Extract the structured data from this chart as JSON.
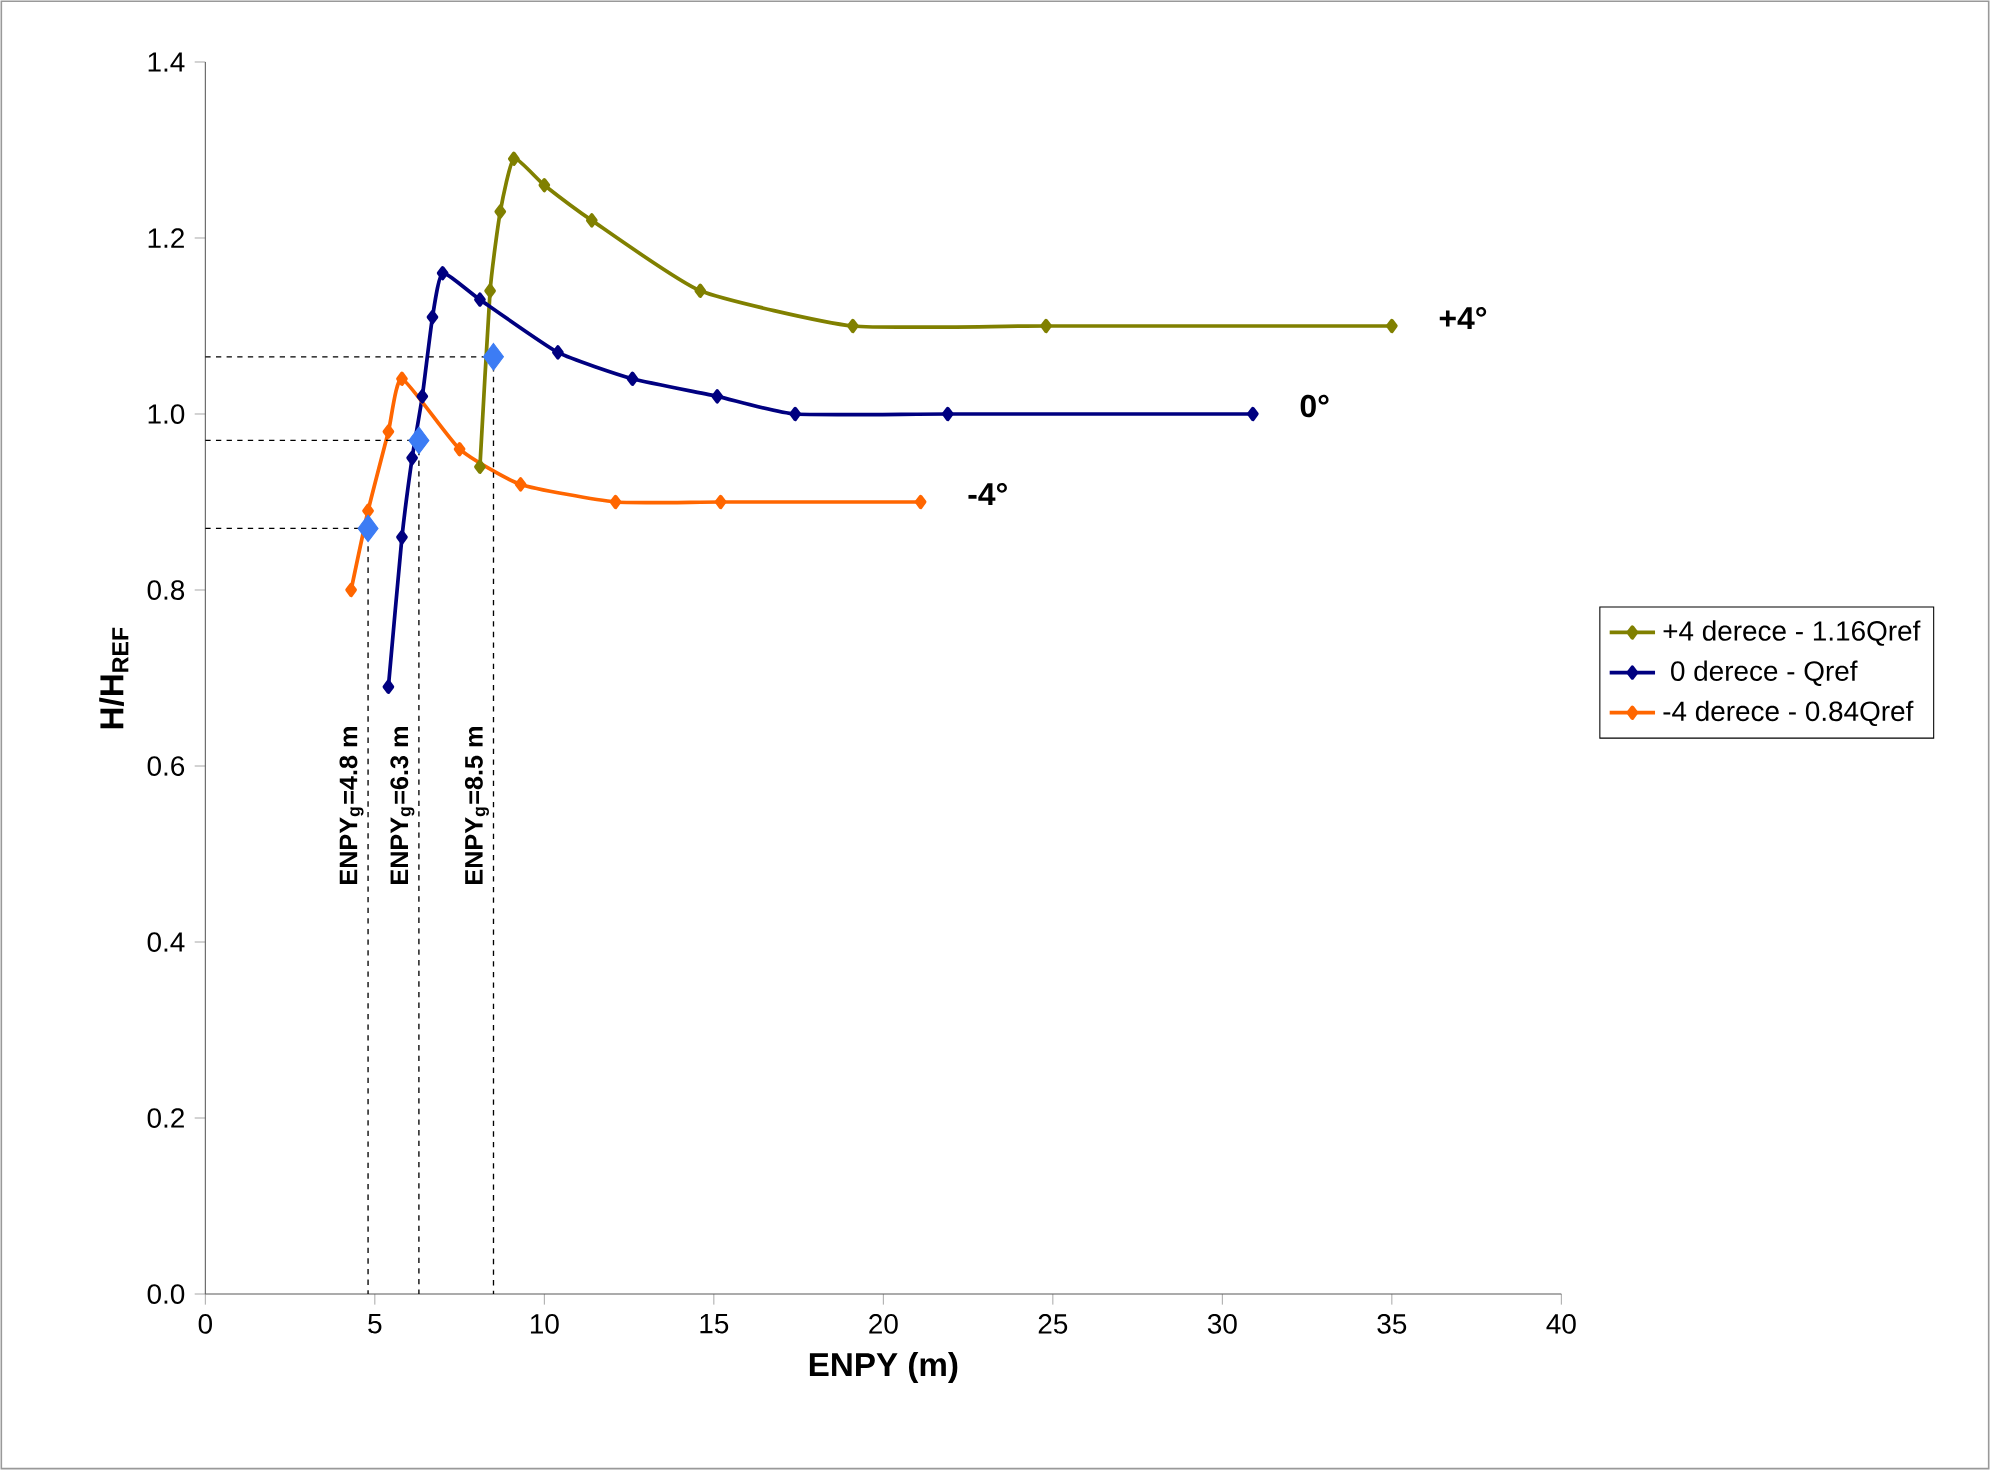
{
  "chart_data": {
    "type": "line",
    "xlabel": "ENPY (m)",
    "ylabel": "H/H$_{REF}$",
    "xlim": [
      0,
      40
    ],
    "ylim": [
      0,
      1.4
    ],
    "xticks": [
      0,
      5,
      10,
      15,
      20,
      25,
      30,
      35,
      40
    ],
    "yticks": [
      {
        "value": 0,
        "label": "0.0"
      },
      {
        "value": 0.2,
        "label": "0.2"
      },
      {
        "value": 0.4,
        "label": "0.4"
      },
      {
        "value": 0.6,
        "label": "0.6"
      },
      {
        "value": 0.8,
        "label": "0.8"
      },
      {
        "value": 1.0,
        "label": "1.0"
      },
      {
        "value": 1.2,
        "label": "1.2"
      },
      {
        "value": 1.4,
        "label": "1.4"
      }
    ],
    "grid": false,
    "legend": "right",
    "marker": "diamond",
    "line_style": "solid",
    "series": [
      {
        "name": "+4 derece - 1.16Qref",
        "color": "#808000",
        "x": [
          8.1,
          8.4,
          8.7,
          9.1,
          10.0,
          11.4,
          14.6,
          19.1,
          24.8,
          35.0
        ],
        "values": [
          0.94,
          1.14,
          1.23,
          1.29,
          1.26,
          1.22,
          1.14,
          1.1,
          1.1,
          1.1
        ]
      },
      {
        "name": " 0 derece -  Qref",
        "color": "#000080",
        "x": [
          5.4,
          5.8,
          6.1,
          6.4,
          6.7,
          7.0,
          8.1,
          10.4,
          12.6,
          15.1,
          17.4,
          21.9,
          30.9
        ],
        "values": [
          0.69,
          0.86,
          0.95,
          1.02,
          1.11,
          1.16,
          1.13,
          1.07,
          1.04,
          1.02,
          1.0,
          1.0,
          1.0
        ]
      },
      {
        "name": "-4 derece - 0.84Qref",
        "color": "#ff6600",
        "x": [
          4.3,
          4.8,
          5.4,
          5.8,
          7.5,
          9.3,
          12.1,
          15.2,
          21.1
        ],
        "values": [
          0.8,
          0.89,
          0.98,
          1.04,
          0.96,
          0.92,
          0.9,
          0.9,
          0.9
        ]
      },
      {
        "type": "line",
        "color": "#000000",
        "marker": "none",
        "line_style": "dashed",
        "x": [
          0,
          4.8,
          4.8
        ],
        "values": [
          0.87,
          0.87,
          0
        ]
      },
      {
        "type": "line",
        "color": "#000000",
        "marker": "none",
        "line_style": "dashed",
        "x": [
          0,
          6.3,
          6.3
        ],
        "values": [
          0.97,
          0.97,
          0
        ]
      },
      {
        "type": "line",
        "color": "#000000",
        "marker": "none",
        "line_style": "dashed",
        "x": [
          0,
          8.5,
          8.5
        ],
        "values": [
          1.065,
          1.065,
          0
        ]
      },
      {
        "type": "scatter",
        "color": "#3c7cf4",
        "marker": "diamond",
        "x": [
          4.8,
          6.3,
          8.5
        ],
        "values": [
          0.87,
          0.97,
          1.065
        ]
      }
    ],
    "annotations": [
      {
        "text": "+4°",
        "x": 35.0,
        "y": 1.1
      },
      {
        "text": "0°",
        "x": 30.9,
        "y": 1.0
      },
      {
        "text": "-4°",
        "x": 21.1,
        "y": 0.9
      },
      {
        "text": "ENPY$_{g}$=4.8 m",
        "x": 4.8,
        "y": 0.555
      },
      {
        "text": "ENPY$_{g}$=6.3 m",
        "x": 6.3,
        "y": 0.555
      },
      {
        "text": "ENPY$_{g}$=8.5 m",
        "x": 8.5,
        "y": 0.555
      }
    ]
  }
}
